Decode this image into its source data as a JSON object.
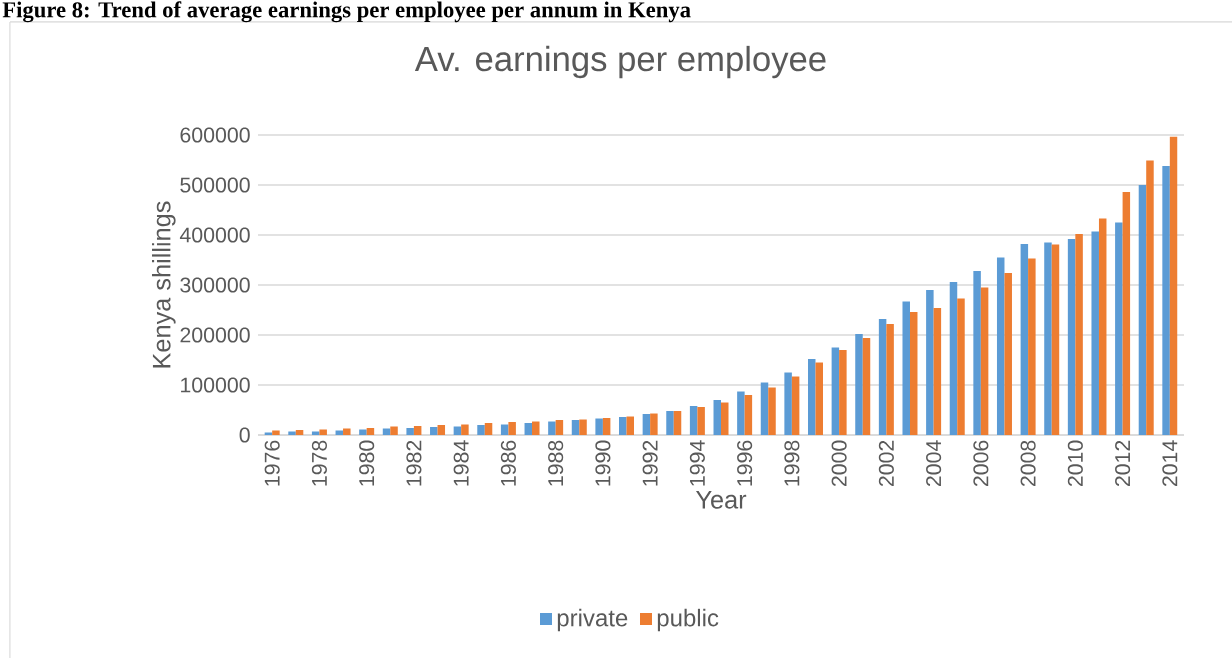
{
  "chart_data": {
    "type": "bar",
    "title": "Av. earnings per employee",
    "xlabel": "Year",
    "ylabel": "Kenya shillings",
    "annotations": [
      "Figure 8: Trend of average earnings per employee per annum in Kenya"
    ],
    "categories": [
      "1976",
      null,
      "1978",
      null,
      "1980",
      null,
      "1982",
      null,
      "1984",
      null,
      "1986",
      null,
      "1988",
      null,
      "1990",
      null,
      "1992",
      null,
      "1994",
      null,
      "1996",
      null,
      "1998",
      null,
      "2000",
      null,
      "2002",
      null,
      "2004",
      null,
      "2006",
      null,
      "2008",
      null,
      "2010",
      null,
      "2012",
      null,
      "2014"
    ],
    "series": [
      {
        "name": "private",
        "color": "#5b9bd5",
        "values": [
          5000,
          7000,
          7000,
          9000,
          11000,
          13000,
          14000,
          16000,
          17000,
          20000,
          21000,
          24000,
          27000,
          30000,
          33000,
          36000,
          42000,
          48000,
          58000,
          70000,
          87000,
          105000,
          125000,
          152000,
          175000,
          202000,
          232000,
          267000,
          290000,
          306000,
          328000,
          355000,
          382000,
          385000,
          392000,
          407000,
          425000,
          500000,
          538000
        ]
      },
      {
        "name": "public",
        "color": "#ed7d31",
        "values": [
          9000,
          10000,
          11000,
          13000,
          14000,
          17000,
          18000,
          20000,
          21000,
          24000,
          26000,
          27000,
          30000,
          31000,
          34000,
          37000,
          43000,
          48000,
          56000,
          65000,
          80000,
          95000,
          117000,
          145000,
          170000,
          194000,
          222000,
          246000,
          254000,
          273000,
          295000,
          324000,
          353000,
          381000,
          402000,
          433000,
          486000,
          549000,
          597000
        ]
      }
    ],
    "ylim": [
      0,
      600000
    ],
    "yticks": [
      0,
      100000,
      200000,
      300000,
      400000,
      500000,
      600000
    ],
    "grid": "y",
    "legend": "bottom"
  }
}
